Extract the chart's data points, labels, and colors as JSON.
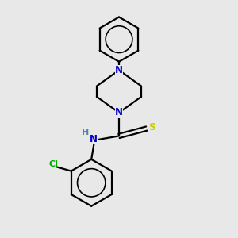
{
  "background_color": "#e8e8e8",
  "atom_color_N": "#0000cc",
  "atom_color_S": "#cccc00",
  "atom_color_Cl": "#00aa00",
  "atom_color_H": "#4488aa",
  "line_width": 1.6,
  "font_size_atoms": 8.5,
  "figsize": [
    3.0,
    3.0
  ],
  "dpi": 100,
  "xlim": [
    -1.3,
    1.3
  ],
  "ylim": [
    -1.6,
    2.8
  ]
}
